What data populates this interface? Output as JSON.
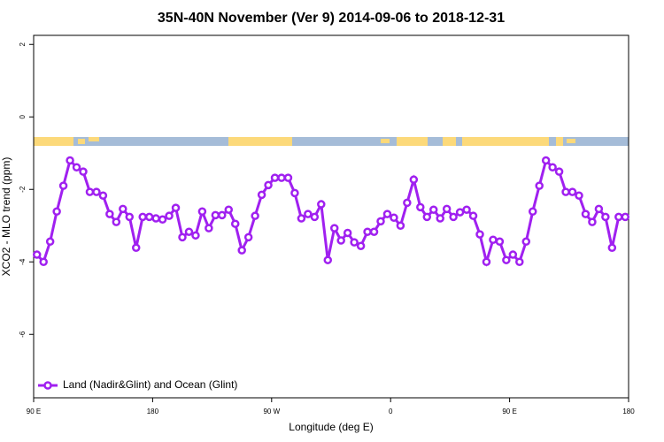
{
  "chart_data": {
    "type": "line",
    "title": "35N-40N November (Ver 9)   2014-09-06 to 2018-12-31",
    "xlabel": "Longitude (deg E)",
    "ylabel": "XCO2 - MLO trend (ppm)",
    "xlim": [
      90,
      540
    ],
    "ylim": [
      -7.75,
      2.25
    ],
    "xticks": [
      {
        "value": 90,
        "label": "90 E"
      },
      {
        "value": 180,
        "label": "180"
      },
      {
        "value": 270,
        "label": "90 W"
      },
      {
        "value": 360,
        "label": "0"
      },
      {
        "value": 450,
        "label": "90 E"
      },
      {
        "value": 540,
        "label": "180"
      }
    ],
    "yticks": [
      2,
      0,
      -2,
      -4,
      -6
    ],
    "legend": "bottomleft",
    "x": [
      92.5,
      97.5,
      102.5,
      107.5,
      112.5,
      117.5,
      122.5,
      127.5,
      132.5,
      137.5,
      142.5,
      147.5,
      152.5,
      157.5,
      162.5,
      167.5,
      172.5,
      177.5,
      182.5,
      187.5,
      192.5,
      197.5,
      202.5,
      207.5,
      212.5,
      217.5,
      222.5,
      227.5,
      232.5,
      237.5,
      242.5,
      247.5,
      252.5,
      257.5,
      262.5,
      267.5,
      272.5,
      277.5,
      282.5,
      287.5,
      292.5,
      297.5,
      302.5,
      307.5,
      312.5,
      317.5,
      322.5,
      327.5,
      332.5,
      337.5,
      342.5,
      347.5,
      352.5,
      357.5,
      362.5,
      367.5,
      372.5,
      377.5,
      382.5,
      387.5,
      392.5,
      397.5,
      402.5,
      407.5,
      412.5,
      417.5,
      422.5,
      427.5,
      432.5,
      437.5,
      442.5,
      447.5,
      452.5,
      457.5,
      462.5,
      467.5,
      472.5,
      477.5,
      482.5,
      487.5,
      492.5,
      497.5,
      502.5,
      507.5,
      512.5,
      517.5,
      522.5,
      527.5,
      532.5,
      537.5
    ],
    "series": [
      {
        "name": "Land (Nadir&Glint) and Ocean (Glint)",
        "color": "#a020f0",
        "values": [
          -3.8,
          -4.0,
          -3.44,
          -2.61,
          -1.9,
          -1.2,
          -1.39,
          -1.51,
          -2.07,
          -2.07,
          -2.17,
          -2.68,
          -2.9,
          -2.54,
          -2.76,
          -3.61,
          -2.76,
          -2.76,
          -2.8,
          -2.83,
          -2.73,
          -2.51,
          -3.32,
          -3.17,
          -3.27,
          -2.61,
          -3.07,
          -2.71,
          -2.71,
          -2.56,
          -2.95,
          -3.68,
          -3.32,
          -2.73,
          -2.15,
          -1.88,
          -1.68,
          -1.68,
          -1.68,
          -2.1,
          -2.8,
          -2.68,
          -2.76,
          -2.41,
          -3.95,
          -3.07,
          -3.41,
          -3.2,
          -3.46,
          -3.56,
          -3.17,
          -3.17,
          -2.88,
          -2.68,
          -2.78,
          -3.0,
          -2.37,
          -1.73,
          -2.49,
          -2.76,
          -2.56,
          -2.8,
          -2.54,
          -2.76,
          -2.63,
          -2.56,
          -2.73,
          -3.24,
          -4.0,
          -3.39,
          -3.44,
          -3.95,
          -3.8,
          -4.0,
          -3.44,
          -2.61,
          -1.9,
          -1.2,
          -1.39,
          -1.51,
          -2.07,
          -2.07,
          -2.17,
          -2.68,
          -2.9,
          -2.54,
          -2.76,
          -3.61,
          -2.76,
          -2.76
        ]
      }
    ]
  }
}
